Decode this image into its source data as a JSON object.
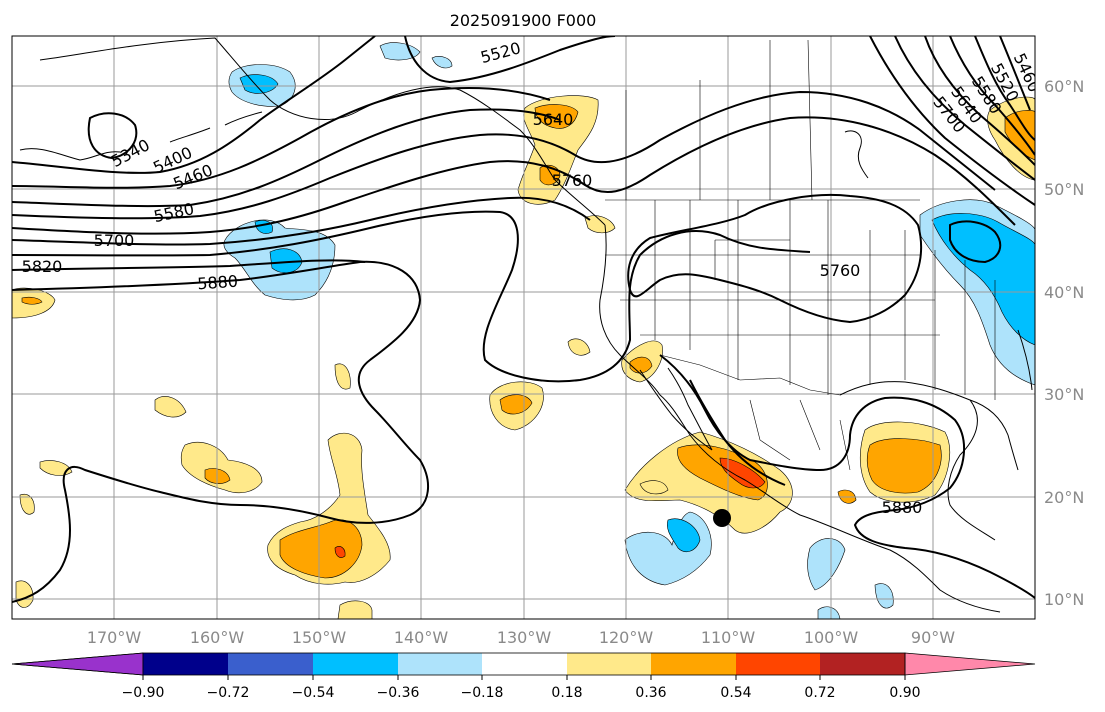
{
  "title": "2025091900 F000",
  "map": {
    "lat_labels": [
      "60°N",
      "50°N",
      "40°N",
      "30°N",
      "20°N",
      "10°N"
    ],
    "lon_labels": [
      "170°W",
      "160°W",
      "150°W",
      "140°W",
      "130°W",
      "120°W",
      "110°W",
      "100°W",
      "90°W"
    ],
    "contour_labels": [
      "5520",
      "5340",
      "5400",
      "5460",
      "5580",
      "5700",
      "5820",
      "5880",
      "5640",
      "5760",
      "5760",
      "5880",
      "5460",
      "5520",
      "5580",
      "5640",
      "5700"
    ],
    "colors": {
      "pos_weak": "#ffe98a",
      "pos_mid": "#ffa500",
      "pos_strong": "#ff4500",
      "neg_weak": "#aee3fb",
      "neg_mid": "#00bfff",
      "contour": "#000000",
      "grid": "#9a9a9a",
      "coast": "#000000"
    }
  },
  "colorbar": {
    "tick_labels": [
      "−0.90",
      "−0.72",
      "−0.54",
      "−0.36",
      "−0.18",
      "0.18",
      "0.36",
      "0.54",
      "0.72",
      "0.90"
    ],
    "colors": [
      "#9932cc",
      "#00008b",
      "#3a5fcd",
      "#00bfff",
      "#aee3fb",
      "#ffffff",
      "#ffe98a",
      "#ffa500",
      "#ff4500",
      "#b22222",
      "#ff88aa",
      "#ff7fa8"
    ]
  }
}
